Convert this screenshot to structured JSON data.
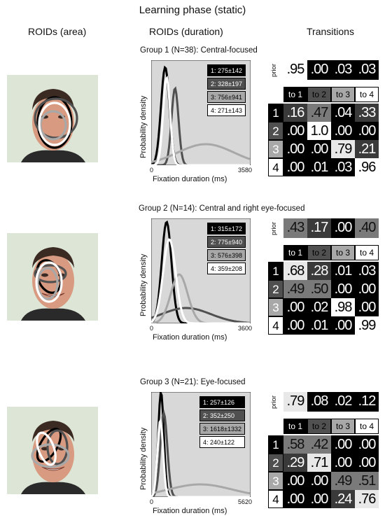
{
  "title": "Learning phase (static)",
  "columns": {
    "area": "ROIDs (area)",
    "duration": "ROIDs (duration)",
    "transitions": "Transitions"
  },
  "ylabel": "Probability density",
  "xlabel": "Fixation duration (ms)",
  "prior_label": "prior",
  "transition_headers": [
    "to 1",
    "to 2",
    "to 3",
    "to 4"
  ],
  "row_labels": [
    "1",
    "2",
    "3",
    "4"
  ],
  "colors": {
    "roid1": "#000000",
    "roid2": "#505050",
    "roid3": "#a8a8a8",
    "roid4": "#ffffff",
    "plot_bg": "#d8d8d8"
  },
  "groups": [
    {
      "title": "Group 1 (N=38): Central-focused",
      "x_min": "0",
      "x_max": "3580",
      "legend": [
        "1: 275±142",
        "2: 328±197",
        "3: 756±941",
        "4: 271±143"
      ],
      "prior": [
        ".95",
        ".00",
        ".03",
        ".03"
      ],
      "matrix": [
        [
          ".16",
          ".47",
          ".04",
          ".33"
        ],
        [
          ".00",
          "1.0",
          ".00",
          ".00"
        ],
        [
          ".00",
          ".00",
          ".79",
          ".21"
        ],
        [
          ".00",
          ".01",
          ".03",
          ".96"
        ]
      ]
    },
    {
      "title": "Group 2 (N=14): Central and right eye-focused",
      "x_min": "0",
      "x_max": "3600",
      "legend": [
        "1: 315±172",
        "2: 775±940",
        "3: 576±398",
        "4: 359±208"
      ],
      "prior": [
        ".43",
        ".17",
        ".00",
        ".40"
      ],
      "matrix": [
        [
          ".68",
          ".28",
          ".01",
          ".03"
        ],
        [
          ".49",
          ".50",
          ".00",
          ".00"
        ],
        [
          ".00",
          ".02",
          ".98",
          ".00"
        ],
        [
          ".00",
          ".01",
          ".00",
          ".99"
        ]
      ]
    },
    {
      "title": "Group 3 (N=21): Eye-focused",
      "x_min": "0",
      "x_max": "5620",
      "legend": [
        "1: 257±126",
        "2: 352±250",
        "3: 1618±1332",
        "4: 240±122"
      ],
      "prior": [
        ".79",
        ".08",
        ".02",
        ".12"
      ],
      "matrix": [
        [
          ".58",
          ".42",
          ".00",
          ".00"
        ],
        [
          ".29",
          ".71",
          ".00",
          ".00"
        ],
        [
          ".00",
          ".00",
          ".49",
          ".51"
        ],
        [
          ".00",
          ".00",
          ".24",
          ".76"
        ]
      ]
    }
  ]
}
